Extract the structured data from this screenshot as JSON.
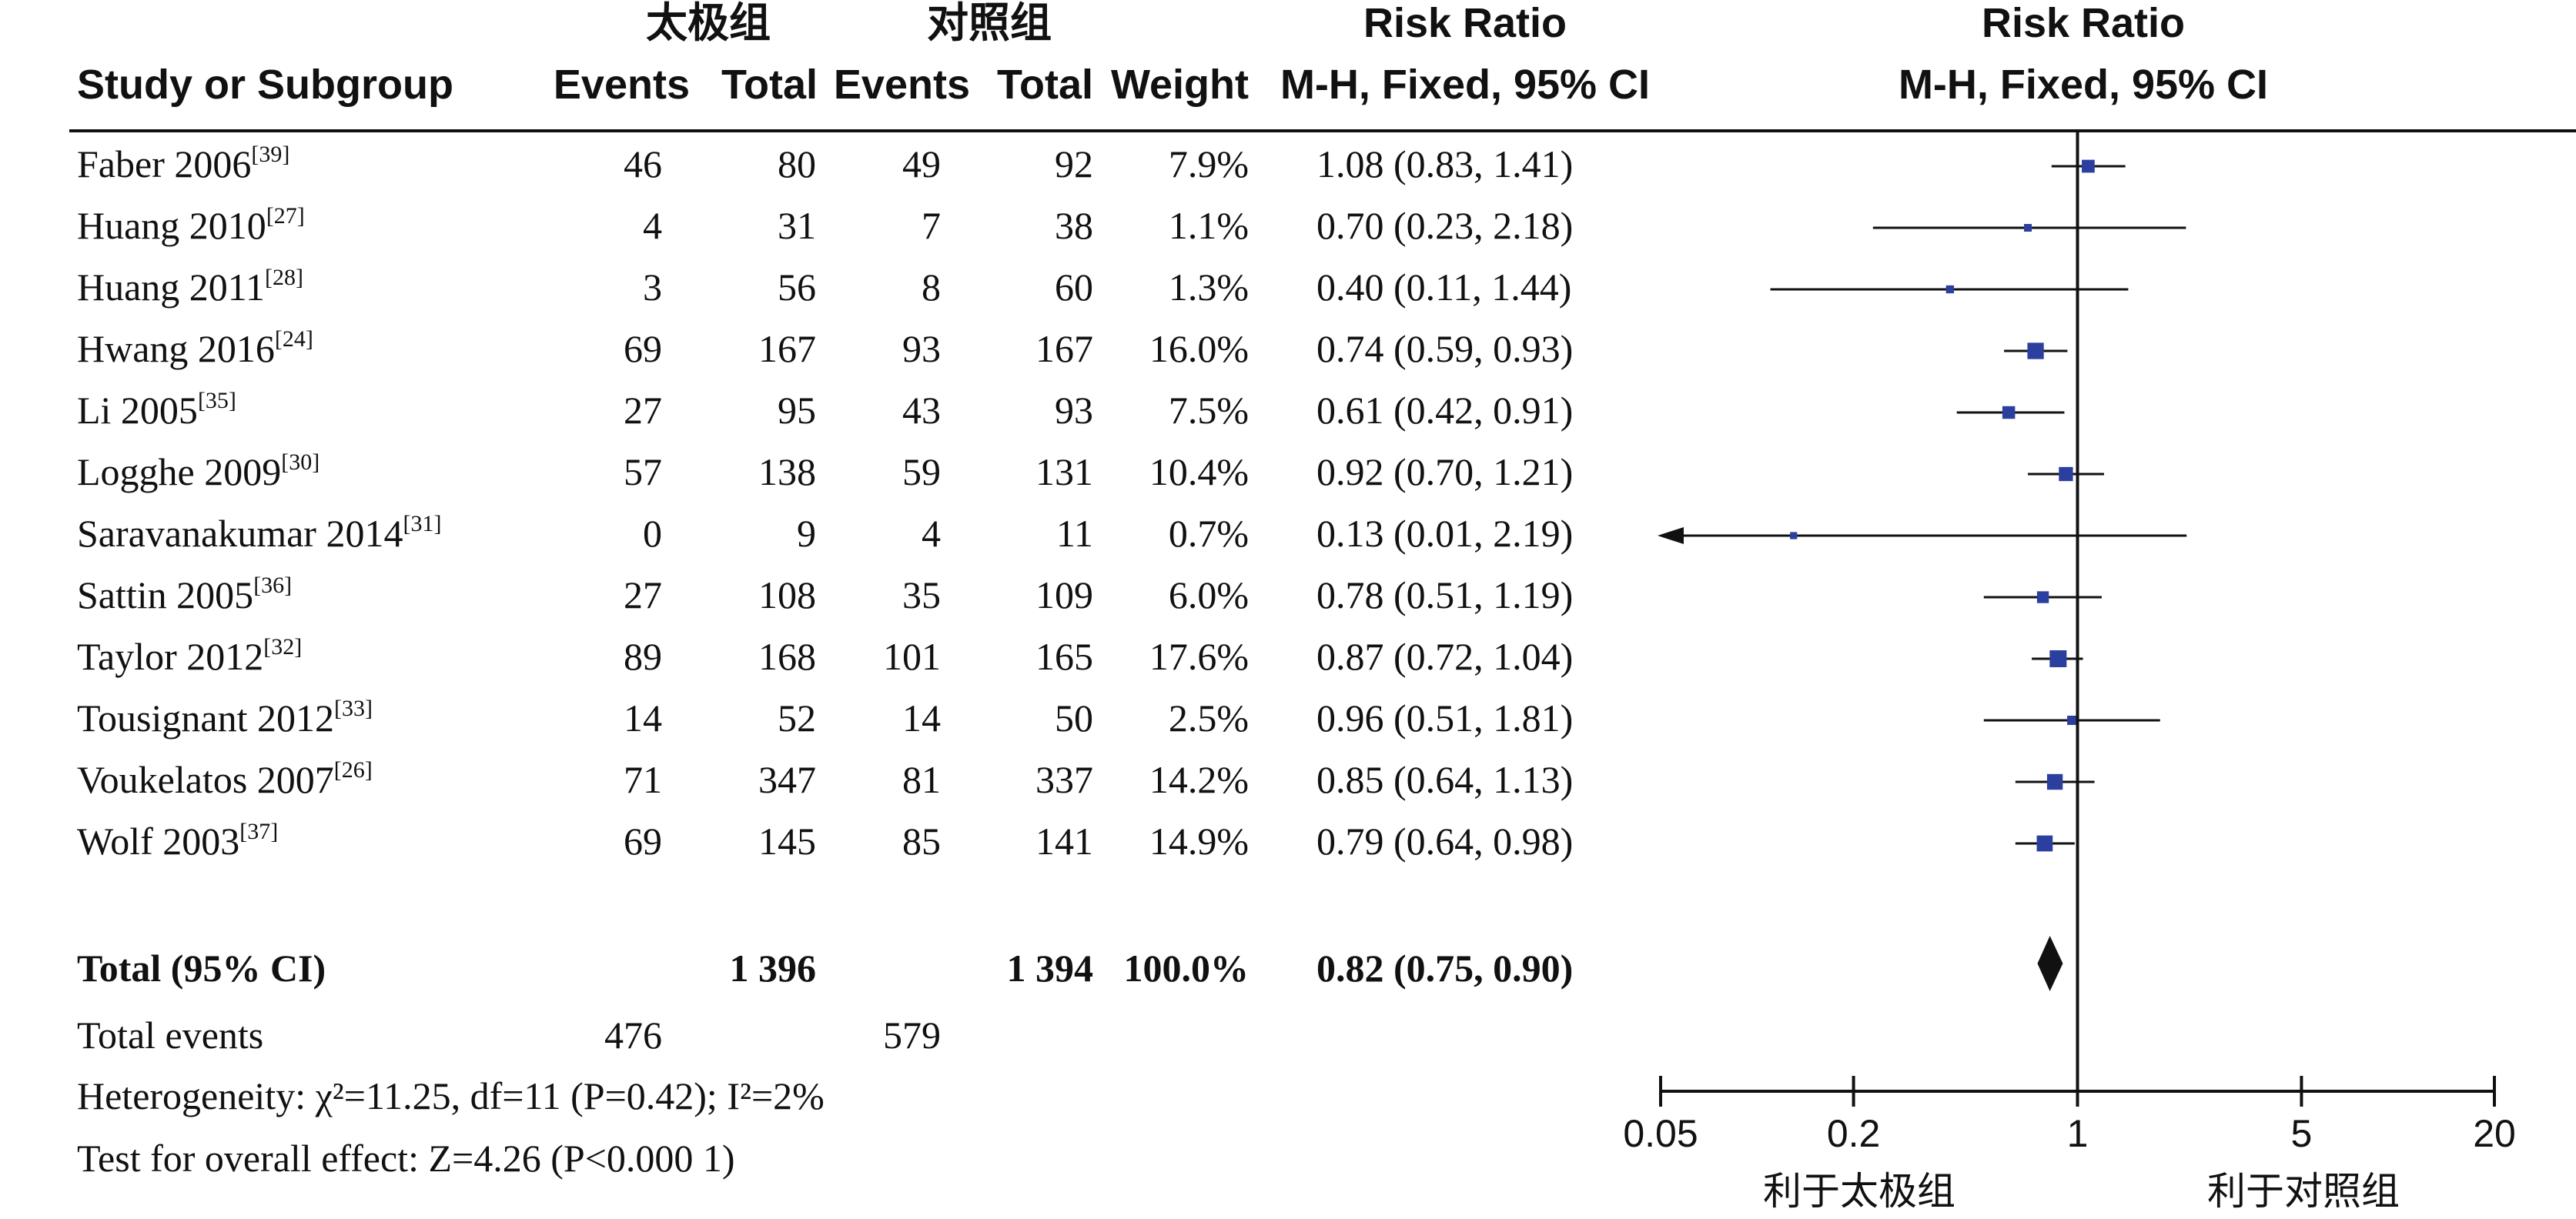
{
  "header": {
    "group1_label": "太极组",
    "group2_label": "对照组",
    "study_label": "Study or Subgroup",
    "events_label": "Events",
    "total_label": "Total",
    "weight_label": "Weight",
    "rr_title": "Risk Ratio",
    "rr_method": "M-H, Fixed, 95% CI",
    "plot_title": "Risk Ratio",
    "plot_method": "M-H, Fixed, 95% CI"
  },
  "footer": {
    "total_label": "Total (95% CI)",
    "total_events_label": "Total events",
    "heterogeneity": "Heterogeneity: χ²=11.25, df=11 (P=0.42); I²=2%",
    "overall_effect": "Test for overall effect: Z=4.26 (P<0.000 1)",
    "favours_left": "利于太极组",
    "favours_right": "利于对照组"
  },
  "chart_data": {
    "type": "forest",
    "x_scale": "log",
    "xlim": [
      0.05,
      20
    ],
    "x_ticks": [
      "0.05",
      "0.2",
      "1",
      "5",
      "20"
    ],
    "null_value": 1,
    "marker_color": "#2b3f9e",
    "studies": [
      {
        "name": "Faber 2006",
        "ref": "[39]",
        "e1": "46",
        "n1": "80",
        "e2": "49",
        "n2": "92",
        "weight": "7.9%",
        "rr": 1.08,
        "lo": 0.83,
        "hi": 1.41,
        "ci_text": "1.08 (0.83, 1.41)"
      },
      {
        "name": "Huang  2010",
        "ref": "[27]",
        "e1": "4",
        "n1": "31",
        "e2": "7",
        "n2": "38",
        "weight": "1.1%",
        "rr": 0.7,
        "lo": 0.23,
        "hi": 2.18,
        "ci_text": "0.70 (0.23, 2.18)"
      },
      {
        "name": "Huang 2011",
        "ref": "[28]",
        "e1": "3",
        "n1": "56",
        "e2": "8",
        "n2": "60",
        "weight": "1.3%",
        "rr": 0.4,
        "lo": 0.11,
        "hi": 1.44,
        "ci_text": "0.40 (0.11, 1.44)"
      },
      {
        "name": "Hwang 2016",
        "ref": "[24]",
        "e1": "69",
        "n1": "167",
        "e2": "93",
        "n2": "167",
        "weight": "16.0%",
        "rr": 0.74,
        "lo": 0.59,
        "hi": 0.93,
        "ci_text": "0.74 (0.59, 0.93)"
      },
      {
        "name": "Li 2005",
        "ref": "[35]",
        "e1": "27",
        "n1": "95",
        "e2": "43",
        "n2": "93",
        "weight": "7.5%",
        "rr": 0.61,
        "lo": 0.42,
        "hi": 0.91,
        "ci_text": "0.61 (0.42, 0.91)"
      },
      {
        "name": "Logghe 2009",
        "ref": "[30]",
        "e1": "57",
        "n1": "138",
        "e2": "59",
        "n2": "131",
        "weight": "10.4%",
        "rr": 0.92,
        "lo": 0.7,
        "hi": 1.21,
        "ci_text": "0.92 (0.70, 1.21)"
      },
      {
        "name": "Saravanakumar 2014",
        "ref": "[31]",
        "e1": "0",
        "n1": "9",
        "e2": "4",
        "n2": "11",
        "weight": "0.7%",
        "rr": 0.13,
        "lo": 0.01,
        "hi": 2.19,
        "ci_text": "0.13 (0.01, 2.19)"
      },
      {
        "name": "Sattin 2005",
        "ref": "[36]",
        "e1": "27",
        "n1": "108",
        "e2": "35",
        "n2": "109",
        "weight": "6.0%",
        "rr": 0.78,
        "lo": 0.51,
        "hi": 1.19,
        "ci_text": "0.78 (0.51, 1.19)"
      },
      {
        "name": "Taylor 2012",
        "ref": "[32]",
        "e1": "89",
        "n1": "168",
        "e2": "101",
        "n2": "165",
        "weight": "17.6%",
        "rr": 0.87,
        "lo": 0.72,
        "hi": 1.04,
        "ci_text": "0.87 (0.72, 1.04)"
      },
      {
        "name": "Tousignant 2012",
        "ref": "[33]",
        "e1": "14",
        "n1": "52",
        "e2": "14",
        "n2": "50",
        "weight": "2.5%",
        "rr": 0.96,
        "lo": 0.51,
        "hi": 1.81,
        "ci_text": "0.96 (0.51, 1.81)"
      },
      {
        "name": "Voukelatos 2007",
        "ref": "[26]",
        "e1": "71",
        "n1": "347",
        "e2": "81",
        "n2": "337",
        "weight": "14.2%",
        "rr": 0.85,
        "lo": 0.64,
        "hi": 1.13,
        "ci_text": "0.85 (0.64, 1.13)"
      },
      {
        "name": "Wolf 2003",
        "ref": "[37]",
        "e1": "69",
        "n1": "145",
        "e2": "85",
        "n2": "141",
        "weight": "14.9%",
        "rr": 0.79,
        "lo": 0.64,
        "hi": 0.98,
        "ci_text": "0.79 (0.64, 0.98)"
      }
    ],
    "total": {
      "n1": "1 396",
      "n2": "1 394",
      "weight": "100.0%",
      "rr": 0.82,
      "lo": 0.75,
      "hi": 0.9,
      "ci_text": "0.82 (0.75, 0.90)",
      "events1": "476",
      "events2": "579"
    }
  }
}
